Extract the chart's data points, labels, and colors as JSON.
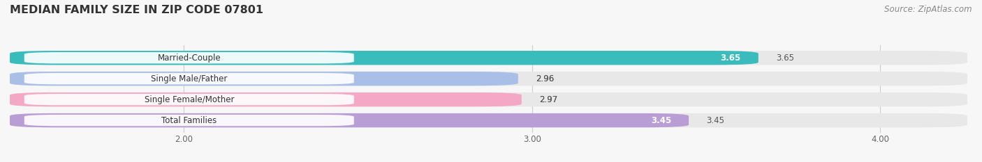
{
  "title": "MEDIAN FAMILY SIZE IN ZIP CODE 07801",
  "source": "Source: ZipAtlas.com",
  "categories": [
    "Married-Couple",
    "Single Male/Father",
    "Single Female/Mother",
    "Total Families"
  ],
  "values": [
    3.65,
    2.96,
    2.97,
    3.45
  ],
  "bar_colors": [
    "#3bbcbc",
    "#aabfe8",
    "#f5a8c5",
    "#b89ed4"
  ],
  "label_bg_colors": [
    "#f0fafa",
    "#eef2fc",
    "#fef0f5",
    "#f5f0fc"
  ],
  "label_border_colors": [
    "#3bbcbc",
    "#aabfe8",
    "#f5a8c5",
    "#b89ed4"
  ],
  "value_colors": [
    "#ffffff",
    "#555555",
    "#555555",
    "#ffffff"
  ],
  "xlim_min": 1.5,
  "xlim_max": 4.25,
  "xticks": [
    2.0,
    3.0,
    4.0
  ],
  "xtick_labels": [
    "2.00",
    "3.00",
    "4.00"
  ],
  "background_color": "#f7f7f7",
  "row_bg_color": "#e8e8e8",
  "title_fontsize": 11.5,
  "label_fontsize": 8.5,
  "value_fontsize": 8.5,
  "source_fontsize": 8.5
}
